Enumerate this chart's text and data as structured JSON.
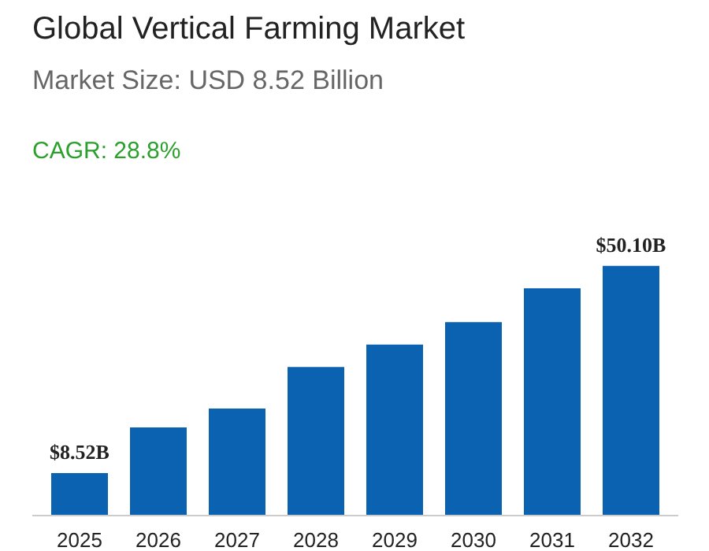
{
  "chart_data": {
    "type": "bar",
    "title": "Global Vertical Farming Market",
    "subtitle": "Market Size: USD 8.52 Billion",
    "annotations": [
      "CAGR: 28.8%"
    ],
    "categories": [
      "2025",
      "2026",
      "2027",
      "2028",
      "2029",
      "2030",
      "2031",
      "2032"
    ],
    "values": [
      8.52,
      17.7,
      21.5,
      29.8,
      34.3,
      38.8,
      45.6,
      50.1
    ],
    "value_labels": [
      "$8.52B",
      null,
      null,
      null,
      null,
      null,
      null,
      "$50.10B"
    ],
    "color": "#0a62b0",
    "grid": false
  }
}
